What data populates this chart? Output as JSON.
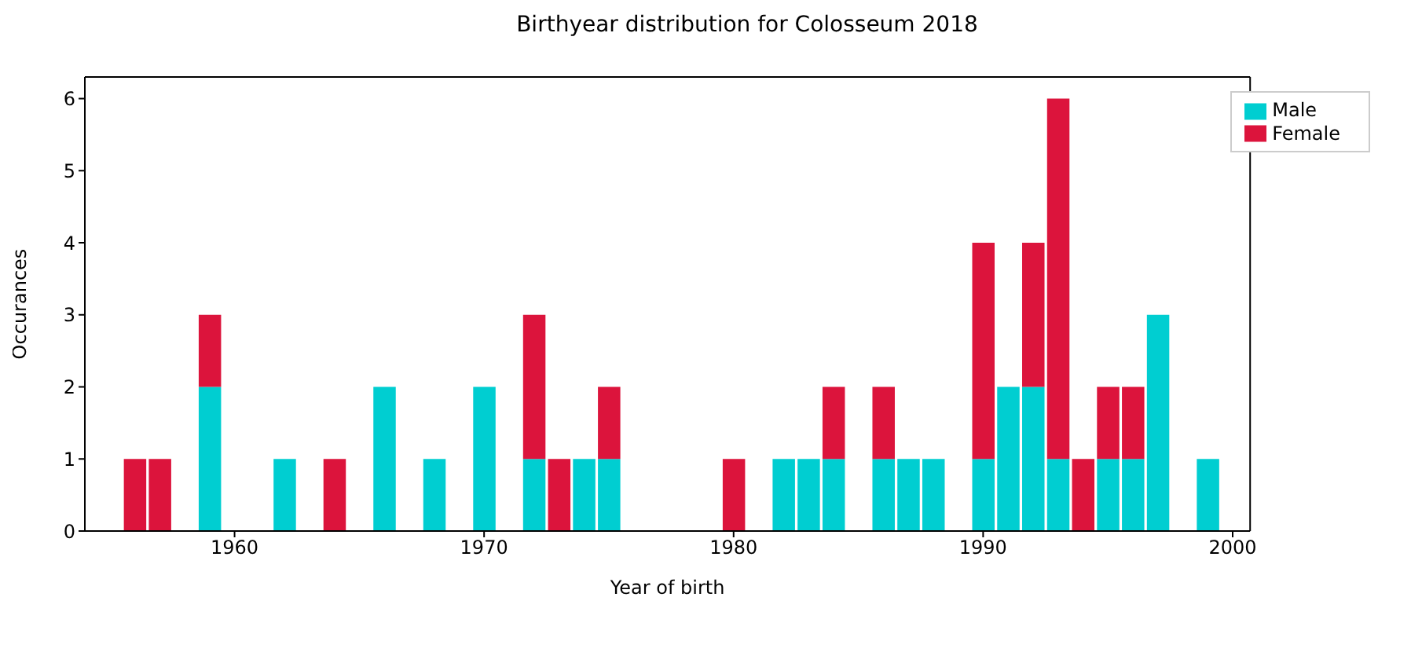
{
  "chart_data": {
    "type": "bar",
    "title": "Birthyear distribution for Colosseum 2018",
    "xlabel": "Year of birth",
    "ylabel": "Occurances",
    "stacked": true,
    "x": [
      1956,
      1957,
      1959,
      1962,
      1964,
      1966,
      1968,
      1970,
      1972,
      1973,
      1974,
      1975,
      1980,
      1982,
      1983,
      1984,
      1986,
      1987,
      1988,
      1990,
      1991,
      1992,
      1993,
      1994,
      1995,
      1996,
      1997,
      1999
    ],
    "series": [
      {
        "name": "Male",
        "color": "#00ced1",
        "values": [
          null,
          null,
          2,
          1,
          null,
          2,
          1,
          2,
          1,
          null,
          1,
          1,
          null,
          1,
          1,
          1,
          1,
          1,
          1,
          1,
          2,
          2,
          1,
          null,
          1,
          1,
          3,
          1
        ]
      },
      {
        "name": "Female",
        "color": "#dc143c",
        "values": [
          1,
          1,
          1,
          null,
          1,
          null,
          null,
          null,
          2,
          1,
          null,
          1,
          1,
          null,
          null,
          1,
          1,
          null,
          null,
          3,
          null,
          2,
          5,
          1,
          1,
          1,
          null,
          null
        ]
      }
    ],
    "xlim": [
      1954,
      2000.7
    ],
    "xticks": [
      1960,
      1970,
      1980,
      1990,
      2000
    ],
    "ylim": [
      0,
      6.3
    ],
    "yticks": [
      0,
      1,
      2,
      3,
      4,
      5,
      6
    ],
    "grid": false,
    "legend": "top right"
  }
}
